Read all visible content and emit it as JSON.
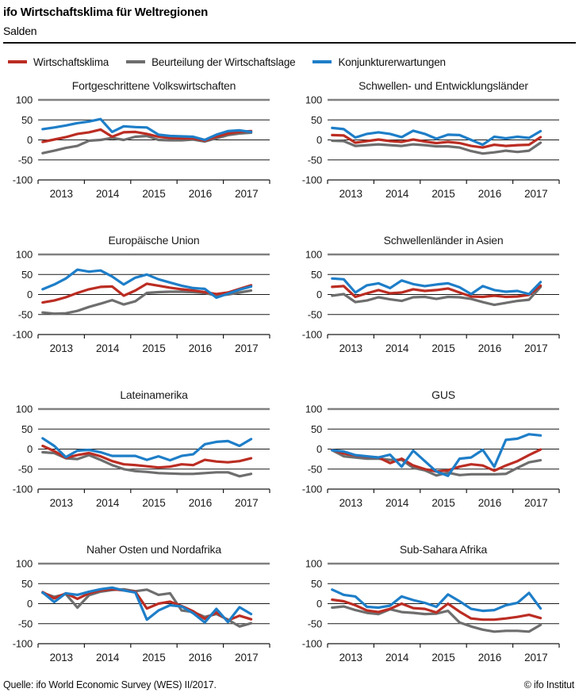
{
  "header": {
    "title": "ifo Wirtschaftsklima für Weltregionen",
    "subtitle": "Salden"
  },
  "legend": [
    {
      "label": "Wirtschaftsklima",
      "color": "#bb2d23"
    },
    {
      "label": "Beurteilung der Wirtschaftslage",
      "color": "#6e6e6e"
    },
    {
      "label": "Konjunkturerwartungen",
      "color": "#1e7ec8"
    }
  ],
  "colors": {
    "wirtschaftsklima": "#bb2d23",
    "beurteilung_der_wirtschaftslage": "#6e6e6e",
    "konjunkturerwartungen": "#1e7ec8",
    "gridline": "#1a1a1a",
    "top_border": "#808080"
  },
  "footer": {
    "source": "Quelle: ifo World Economic Survey (WES) II/2017.",
    "copyright": "© ifo Institut"
  },
  "chart_data": [
    {
      "type": "line",
      "title": "Fortgeschrittene Volkswirtschaften",
      "x_labels": [
        "2013",
        "2014",
        "2015",
        "2016",
        "2017"
      ],
      "x_range_note": "quarterly values 2012Q4–2017Q2",
      "ylim": [
        -100,
        100
      ],
      "y_ticks": [
        100,
        50,
        0,
        -50,
        -100
      ],
      "series": [
        {
          "name": "Wirtschaftsklima",
          "color": "#bb2d23",
          "z": 1,
          "values": [
            -5,
            1,
            7,
            15,
            19,
            26,
            8,
            19,
            20,
            15,
            8,
            5,
            4,
            4,
            -2,
            8,
            16,
            20,
            22
          ]
        },
        {
          "name": "Beurteilung der Wirtschaftslage",
          "color": "#6e6e6e",
          "z": 0,
          "values": [
            -33,
            -27,
            -20,
            -15,
            -2,
            0,
            5,
            0,
            8,
            10,
            0,
            -1,
            -1,
            1,
            -4,
            4,
            12,
            16,
            18
          ]
        },
        {
          "name": "Konjunkturerwartungen",
          "color": "#1e7ec8",
          "z": 2,
          "values": [
            27,
            31,
            36,
            42,
            46,
            52,
            20,
            34,
            32,
            31,
            13,
            10,
            9,
            8,
            0,
            13,
            22,
            24,
            20
          ]
        }
      ]
    },
    {
      "type": "line",
      "title": "Schwellen- und Entwicklungsländer",
      "x_labels": [
        "2013",
        "2014",
        "2015",
        "2016",
        "2017"
      ],
      "x_range_note": "quarterly values 2012Q4–2017Q2",
      "ylim": [
        -100,
        100
      ],
      "y_ticks": [
        100,
        50,
        0,
        -50,
        -100
      ],
      "series": [
        {
          "name": "Wirtschaftsklima",
          "color": "#bb2d23",
          "z": 1,
          "values": [
            12,
            11,
            -7,
            -3,
            1,
            -3,
            -5,
            1,
            -4,
            -8,
            -5,
            -8,
            -15,
            -19,
            -12,
            -15,
            -13,
            -12,
            7
          ]
        },
        {
          "name": "Beurteilung der Wirtschaftslage",
          "color": "#6e6e6e",
          "z": 0,
          "values": [
            -2,
            -3,
            -15,
            -13,
            -11,
            -13,
            -15,
            -11,
            -13,
            -16,
            -16,
            -19,
            -28,
            -34,
            -31,
            -27,
            -30,
            -27,
            -7
          ]
        },
        {
          "name": "Konjunkturerwartungen",
          "color": "#1e7ec8",
          "z": 2,
          "values": [
            30,
            27,
            6,
            15,
            19,
            15,
            7,
            23,
            15,
            3,
            13,
            12,
            0,
            -12,
            8,
            4,
            8,
            5,
            22
          ]
        }
      ]
    },
    {
      "type": "line",
      "title": "Europäische Union",
      "x_labels": [
        "2013",
        "2014",
        "2015",
        "2016",
        "2017"
      ],
      "x_range_note": "quarterly values 2012Q4–2017Q2",
      "ylim": [
        -100,
        100
      ],
      "y_ticks": [
        100,
        50,
        0,
        -50,
        -100
      ],
      "series": [
        {
          "name": "Wirtschaftsklima",
          "color": "#bb2d23",
          "z": 1,
          "values": [
            -20,
            -15,
            -7,
            4,
            13,
            19,
            20,
            -3,
            10,
            27,
            22,
            17,
            13,
            10,
            6,
            1,
            5,
            14,
            23
          ]
        },
        {
          "name": "Beurteilung der Wirtschaftslage",
          "color": "#6e6e6e",
          "z": 0,
          "values": [
            -45,
            -48,
            -47,
            -41,
            -31,
            -23,
            -14,
            -25,
            -17,
            4,
            6,
            7,
            7,
            6,
            4,
            -3,
            0,
            5,
            10
          ]
        },
        {
          "name": "Konjunkturerwartungen",
          "color": "#1e7ec8",
          "z": 2,
          "values": [
            13,
            25,
            40,
            62,
            57,
            60,
            45,
            25,
            42,
            50,
            38,
            30,
            22,
            16,
            14,
            -8,
            2,
            12,
            20
          ]
        }
      ]
    },
    {
      "type": "line",
      "title": "Schwellenländer in Asien",
      "x_labels": [
        "2013",
        "2014",
        "2015",
        "2016",
        "2017"
      ],
      "x_range_note": "quarterly values 2012Q4–2017Q2",
      "ylim": [
        -100,
        100
      ],
      "y_ticks": [
        100,
        50,
        0,
        -50,
        -100
      ],
      "series": [
        {
          "name": "Wirtschaftsklima",
          "color": "#bb2d23",
          "z": 1,
          "values": [
            19,
            21,
            -6,
            3,
            11,
            3,
            5,
            13,
            9,
            11,
            15,
            5,
            -5,
            -6,
            -3,
            -6,
            -5,
            -1,
            22
          ]
        },
        {
          "name": "Beurteilung der Wirtschaftslage",
          "color": "#6e6e6e",
          "z": 0,
          "values": [
            -3,
            1,
            -19,
            -15,
            -7,
            -12,
            -16,
            -7,
            -6,
            -11,
            -6,
            -7,
            -11,
            -19,
            -26,
            -21,
            -16,
            -13,
            19
          ]
        },
        {
          "name": "Konjunkturerwartungen",
          "color": "#1e7ec8",
          "z": 2,
          "values": [
            40,
            38,
            5,
            23,
            28,
            16,
            35,
            26,
            21,
            25,
            28,
            18,
            1,
            21,
            11,
            7,
            9,
            1,
            31
          ]
        }
      ]
    },
    {
      "type": "line",
      "title": "Lateinamerika",
      "x_labels": [
        "2013",
        "2014",
        "2015",
        "2016",
        "2017"
      ],
      "x_range_note": "quarterly values 2012Q4–2017Q2",
      "ylim": [
        -100,
        100
      ],
      "y_ticks": [
        100,
        50,
        0,
        -50,
        -100
      ],
      "series": [
        {
          "name": "Wirtschaftsklima",
          "color": "#bb2d23",
          "z": 1,
          "values": [
            8,
            -5,
            -22,
            -15,
            -10,
            -18,
            -30,
            -38,
            -40,
            -43,
            -46,
            -44,
            -38,
            -40,
            -27,
            -31,
            -33,
            -30,
            -23
          ]
        },
        {
          "name": "Beurteilung der Wirtschaftslage",
          "color": "#6e6e6e",
          "z": 0,
          "values": [
            -8,
            -10,
            -23,
            -25,
            -15,
            -27,
            -40,
            -50,
            -55,
            -57,
            -60,
            -61,
            -62,
            -62,
            -60,
            -58,
            -58,
            -68,
            -62
          ]
        },
        {
          "name": "Konjunkturerwartungen",
          "color": "#1e7ec8",
          "z": 2,
          "values": [
            27,
            8,
            -20,
            -4,
            -2,
            -8,
            -17,
            -17,
            -17,
            -27,
            -18,
            -28,
            -17,
            -13,
            12,
            18,
            20,
            8,
            25
          ]
        }
      ]
    },
    {
      "type": "line",
      "title": "GUS",
      "x_labels": [
        "2013",
        "2014",
        "2015",
        "2016",
        "2017"
      ],
      "x_range_note": "quarterly values 2012Q4–2017Q2",
      "ylim": [
        -100,
        100
      ],
      "y_ticks": [
        100,
        50,
        0,
        -50,
        -100
      ],
      "series": [
        {
          "name": "Wirtschaftsklima",
          "color": "#bb2d23",
          "z": 1,
          "values": [
            -2,
            -11,
            -16,
            -19,
            -21,
            -35,
            -24,
            -41,
            -50,
            -56,
            -53,
            -44,
            -38,
            -41,
            -54,
            -41,
            -30,
            -15,
            -1
          ]
        },
        {
          "name": "Beurteilung der Wirtschaftslage",
          "color": "#6e6e6e",
          "z": 0,
          "values": [
            -3,
            -18,
            -21,
            -24,
            -24,
            -27,
            -27,
            -47,
            -53,
            -66,
            -59,
            -65,
            -63,
            -63,
            -63,
            -62,
            -47,
            -33,
            -28
          ]
        },
        {
          "name": "Konjunkturerwartungen",
          "color": "#1e7ec8",
          "z": 2,
          "values": [
            -3,
            -6,
            -15,
            -18,
            -21,
            -14,
            -44,
            -4,
            -30,
            -56,
            -67,
            -24,
            -21,
            -2,
            -44,
            23,
            26,
            37,
            34
          ]
        }
      ]
    },
    {
      "type": "line",
      "title": "Naher Osten und Nordafrika",
      "x_labels": [
        "2013",
        "2014",
        "2015",
        "2016",
        "2017"
      ],
      "x_range_note": "quarterly values 2012Q4–2017Q2",
      "ylim": [
        -100,
        100
      ],
      "y_ticks": [
        100,
        50,
        0,
        -50,
        -100
      ],
      "series": [
        {
          "name": "Wirtschaftsklima",
          "color": "#bb2d23",
          "z": 1,
          "values": [
            29,
            13,
            26,
            12,
            26,
            33,
            36,
            33,
            30,
            -12,
            0,
            5,
            -6,
            -19,
            -38,
            -22,
            -42,
            -30,
            -39
          ]
        },
        {
          "name": "Beurteilung der Wirtschaftslage",
          "color": "#6e6e6e",
          "z": 0,
          "values": [
            27,
            17,
            24,
            -10,
            21,
            30,
            34,
            36,
            31,
            35,
            22,
            26,
            -17,
            -21,
            -33,
            -26,
            -40,
            -57,
            -49
          ]
        },
        {
          "name": "Konjunkturerwartungen",
          "color": "#1e7ec8",
          "z": 2,
          "values": [
            28,
            4,
            26,
            22,
            30,
            36,
            40,
            33,
            28,
            -40,
            -17,
            -4,
            -7,
            -24,
            -47,
            -13,
            -46,
            -9,
            -26
          ]
        }
      ]
    },
    {
      "type": "line",
      "title": "Sub-Sahara Afrika",
      "x_labels": [
        "2013",
        "2014",
        "2015",
        "2016",
        "2017"
      ],
      "x_range_note": "quarterly values 2012Q4–2017Q2",
      "ylim": [
        -100,
        100
      ],
      "y_ticks": [
        100,
        50,
        0,
        -50,
        -100
      ],
      "series": [
        {
          "name": "Wirtschaftsklima",
          "color": "#bb2d23",
          "z": 1,
          "values": [
            10,
            6,
            -4,
            -17,
            -21,
            -13,
            0,
            -11,
            -13,
            -22,
            0,
            -20,
            -37,
            -40,
            -40,
            -37,
            -33,
            -28,
            -36
          ]
        },
        {
          "name": "Beurteilung der Wirtschaftslage",
          "color": "#6e6e6e",
          "z": 0,
          "values": [
            -10,
            -7,
            -16,
            -23,
            -26,
            -14,
            -21,
            -23,
            -26,
            -25,
            -18,
            -47,
            -57,
            -65,
            -70,
            -68,
            -68,
            -70,
            -53
          ]
        },
        {
          "name": "Konjunkturerwartungen",
          "color": "#1e7ec8",
          "z": 2,
          "values": [
            35,
            22,
            18,
            -8,
            -10,
            -5,
            18,
            9,
            2,
            -8,
            23,
            6,
            -13,
            -18,
            -16,
            -4,
            2,
            27,
            -12
          ]
        }
      ]
    }
  ]
}
